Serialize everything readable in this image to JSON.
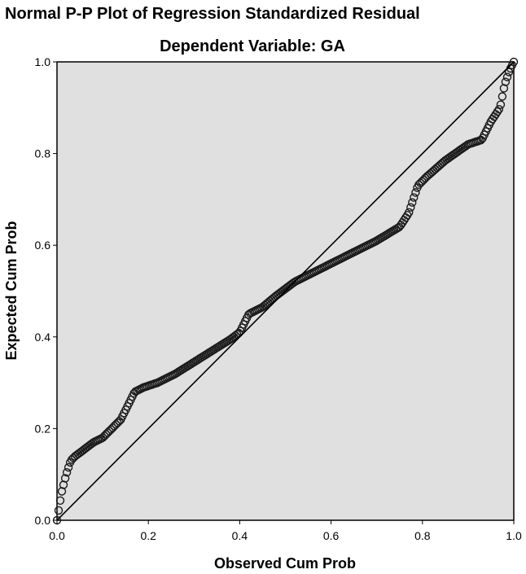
{
  "header": {
    "title": "Normal P-P Plot of Regression Standardized Residual",
    "subtitle": "Dependent Variable: GA"
  },
  "colors": {
    "plot_background": "#e0e0e0",
    "marker_stroke": "#1a1a1a",
    "reference_line": "#000000"
  },
  "chart_data": {
    "type": "scatter",
    "title": "Normal P-P Plot of Regression Standardized Residual",
    "subtitle": "Dependent Variable: GA",
    "xlabel": "Observed Cum Prob",
    "ylabel": "Expected Cum Prob",
    "xlim": [
      0.0,
      1.0
    ],
    "ylim": [
      0.0,
      1.0
    ],
    "xticks": [
      "0.0",
      "0.2",
      "0.4",
      "0.6",
      "0.8",
      "1.0"
    ],
    "yticks": [
      "0.0",
      "0.2",
      "0.4",
      "0.6",
      "0.8",
      "1.0"
    ],
    "grid": false,
    "marker": "open-circle",
    "reference_line": {
      "from": [
        0,
        0
      ],
      "to": [
        1,
        1
      ]
    },
    "anchors": {
      "x": [
        0.0,
        0.01,
        0.02,
        0.03,
        0.04,
        0.06,
        0.08,
        0.1,
        0.12,
        0.14,
        0.155,
        0.17,
        0.19,
        0.22,
        0.26,
        0.3,
        0.34,
        0.38,
        0.4,
        0.42,
        0.45,
        0.48,
        0.52,
        0.55,
        0.6,
        0.65,
        0.7,
        0.75,
        0.77,
        0.79,
        0.81,
        0.85,
        0.9,
        0.93,
        0.95,
        0.97,
        0.98,
        0.99,
        1.0
      ],
      "y": [
        0.0,
        0.06,
        0.1,
        0.13,
        0.14,
        0.155,
        0.17,
        0.18,
        0.2,
        0.22,
        0.25,
        0.28,
        0.29,
        0.3,
        0.32,
        0.345,
        0.37,
        0.395,
        0.41,
        0.45,
        0.465,
        0.49,
        0.52,
        0.535,
        0.56,
        0.585,
        0.61,
        0.64,
        0.67,
        0.73,
        0.75,
        0.785,
        0.82,
        0.83,
        0.87,
        0.9,
        0.95,
        0.98,
        1.0
      ]
    },
    "count": 280
  }
}
